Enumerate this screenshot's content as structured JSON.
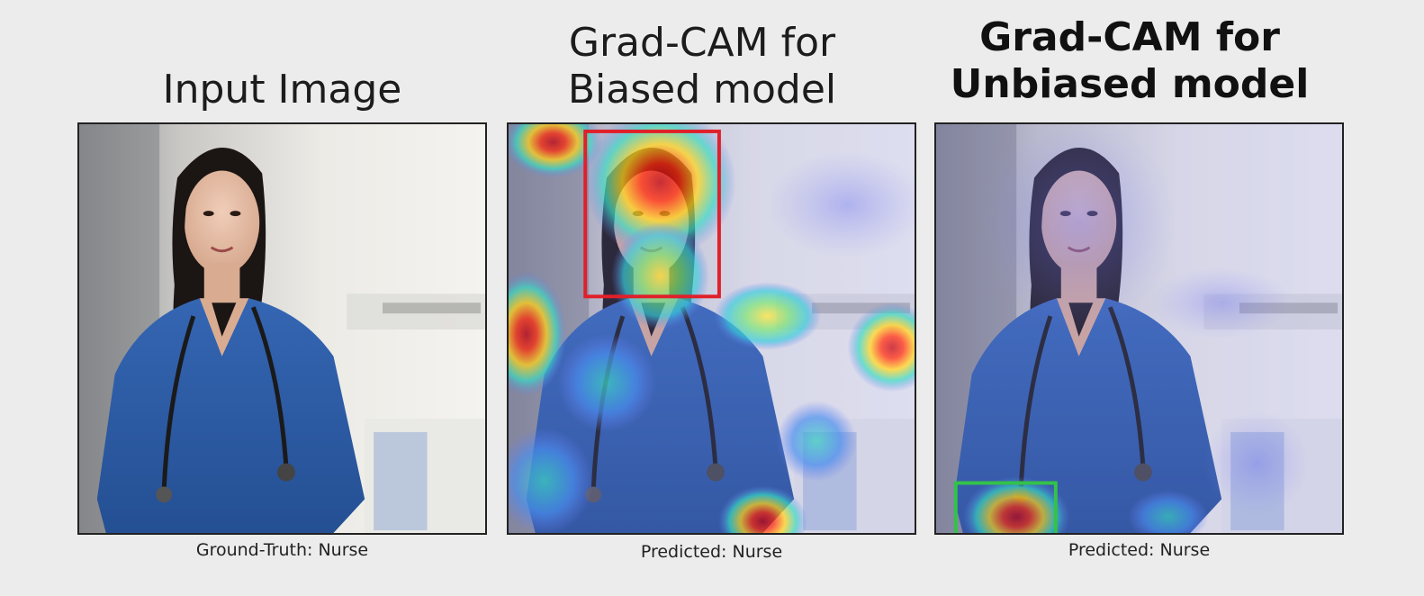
{
  "panels": [
    {
      "title": "Input Image",
      "caption": "Ground-Truth: Nurse",
      "image": "nurse-photo"
    },
    {
      "title_lines": [
        "Grad-CAM for",
        "Biased model"
      ],
      "caption": "Predicted: Nurse",
      "image": "nurse-photo-with-heatmap",
      "highlight_box_color": "#e0202a"
    },
    {
      "title_lines": [
        "Grad-CAM for",
        "Unbiased model"
      ],
      "caption": "Predicted: Nurse",
      "image": "nurse-photo-with-heatmap",
      "highlight_box_color": "#33c24a"
    }
  ],
  "colors": {
    "scrubs": "#2f5ea8",
    "background": "#ececec",
    "heat_hot": "#d8001a",
    "heat_warm": "#ffd21f",
    "heat_cool": "#3bd6c8",
    "heat_cold": "#6a7cf0"
  }
}
